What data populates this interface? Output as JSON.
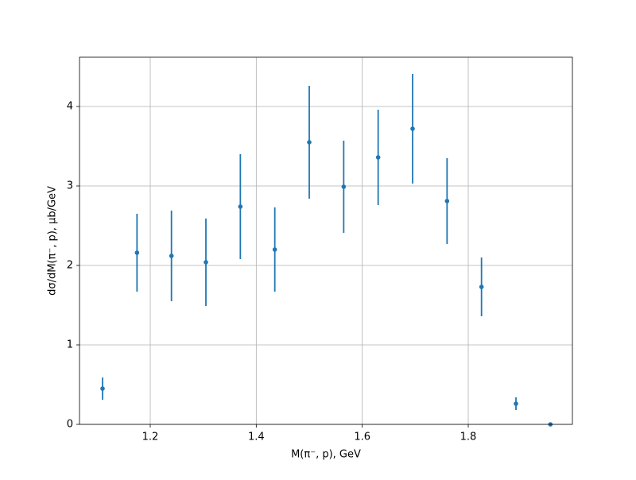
{
  "chart_data": {
    "type": "errorbar",
    "xlabel": "M(π⁻, p), GeV",
    "ylabel": "dσ/dM(π⁻, p), μb/GeV",
    "x": [
      1.11,
      1.175,
      1.24,
      1.305,
      1.37,
      1.435,
      1.5,
      1.565,
      1.63,
      1.695,
      1.76,
      1.825,
      1.89,
      1.955
    ],
    "series": [
      {
        "color": "#1f77b4",
        "values": [
          0.45,
          2.16,
          2.12,
          2.04,
          2.74,
          2.2,
          3.55,
          2.99,
          3.36,
          3.72,
          2.81,
          1.73,
          0.26,
          0.0
        ],
        "errors": [
          0.14,
          0.49,
          0.57,
          0.55,
          0.66,
          0.53,
          0.71,
          0.58,
          0.6,
          0.69,
          0.54,
          0.37,
          0.08,
          0.0
        ]
      }
    ],
    "xlim": [
      1.0665,
      1.9965
    ],
    "ylim": [
      0,
      4.62
    ],
    "xticks": [
      1.2,
      1.4,
      1.6,
      1.8
    ],
    "yticks": [
      0,
      1,
      2,
      3,
      4
    ],
    "grid": true
  }
}
